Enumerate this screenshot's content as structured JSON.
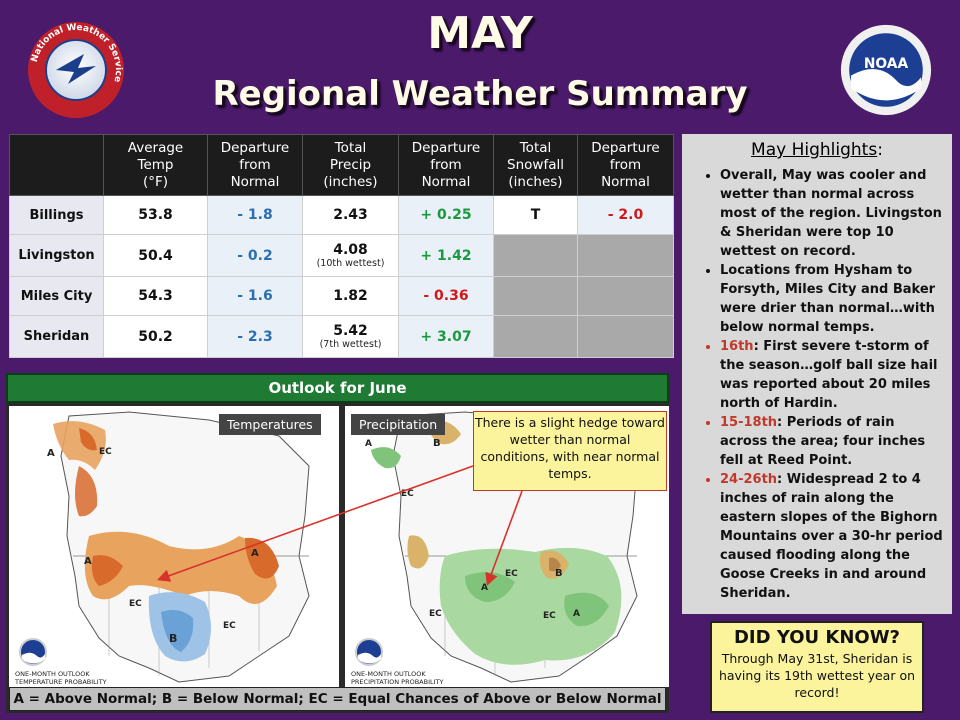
{
  "header": {
    "title_line1": "MAY",
    "title_line2": "Regional Weather Summary",
    "left_logo": "National Weather Service",
    "left_logo_icon": "nws-logo-icon",
    "right_logo": "NOAA",
    "right_logo_icon": "noaa-logo-icon"
  },
  "table": {
    "columns": [
      "",
      "Average\nTemp\n(°F)",
      "Departure\nfrom\nNormal",
      "Total\nPrecip\n(inches)",
      "Departure\nfrom\nNormal",
      "Total\nSnowfall\n(inches)",
      "Departure\nfrom\nNormal"
    ],
    "rows": [
      {
        "city": "Billings",
        "temp": "53.8",
        "temp_dep": "- 1.8",
        "precip": "2.43",
        "precip_note": "",
        "precip_dep": "+ 0.25",
        "snow": "T",
        "snow_dep": "- 2.0"
      },
      {
        "city": "Livingston",
        "temp": "50.4",
        "temp_dep": "- 0.2",
        "precip": "4.08",
        "precip_note": "(10th wettest)",
        "precip_dep": "+ 1.42",
        "snow": "",
        "snow_dep": ""
      },
      {
        "city": "Miles City",
        "temp": "54.3",
        "temp_dep": "- 1.6",
        "precip": "1.82",
        "precip_note": "",
        "precip_dep": "- 0.36",
        "snow": "",
        "snow_dep": ""
      },
      {
        "city": "Sheridan",
        "temp": "50.2",
        "temp_dep": "- 2.3",
        "precip": "5.42",
        "precip_note": "(7th wettest)",
        "precip_dep": "+ 3.07",
        "snow": "",
        "snow_dep": ""
      }
    ],
    "colors": {
      "below": "#2a6fb0",
      "above": "#1a9a3e",
      "deficit": "#d01818"
    }
  },
  "highlights": {
    "title": "May Highlights",
    "title_suffix": ":",
    "items": [
      {
        "date": "",
        "text": "Overall, May was cooler and wetter than normal across most of the region. Livingston & Sheridan were top 10 wettest  on record."
      },
      {
        "date": "",
        "text": "Locations from Hysham to Forsyth, Miles City and Baker were drier than normal…with below normal temps."
      },
      {
        "date": "16th",
        "text": ": First severe t-storm of the season…golf ball size hail was reported about 20 miles north of Hardin."
      },
      {
        "date": "15-18th",
        "text": ": Periods of rain across the area; four inches fell at Reed Point."
      },
      {
        "date": "24-26th",
        "text": ": Widespread 2 to 4 inches of rain along the eastern slopes of the Bighorn Mountains over a 30-hr period caused flooding along the Goose Creeks in and around Sheridan."
      }
    ]
  },
  "did_you_know": {
    "title": "DID YOU KNOW?",
    "text": "Through May 31st, Sheridan is having its 19th wettest year on record!"
  },
  "outlook": {
    "title": "Outlook for June",
    "temp_tag": "Temperatures",
    "precip_tag": "Precipitation",
    "temp_caption": "ONE-MONTH OUTLOOK\nTEMPERATURE PROBABILITY",
    "precip_caption": "ONE-MONTH OUTLOOK\nPRECIPITATION PROBABILITY",
    "callout": "There is a slight hedge toward wetter than normal conditions, with near normal temps.",
    "legend": "A = Above Normal;  B = Below Normal;  EC = Equal Chances of Above or Below Normal"
  }
}
